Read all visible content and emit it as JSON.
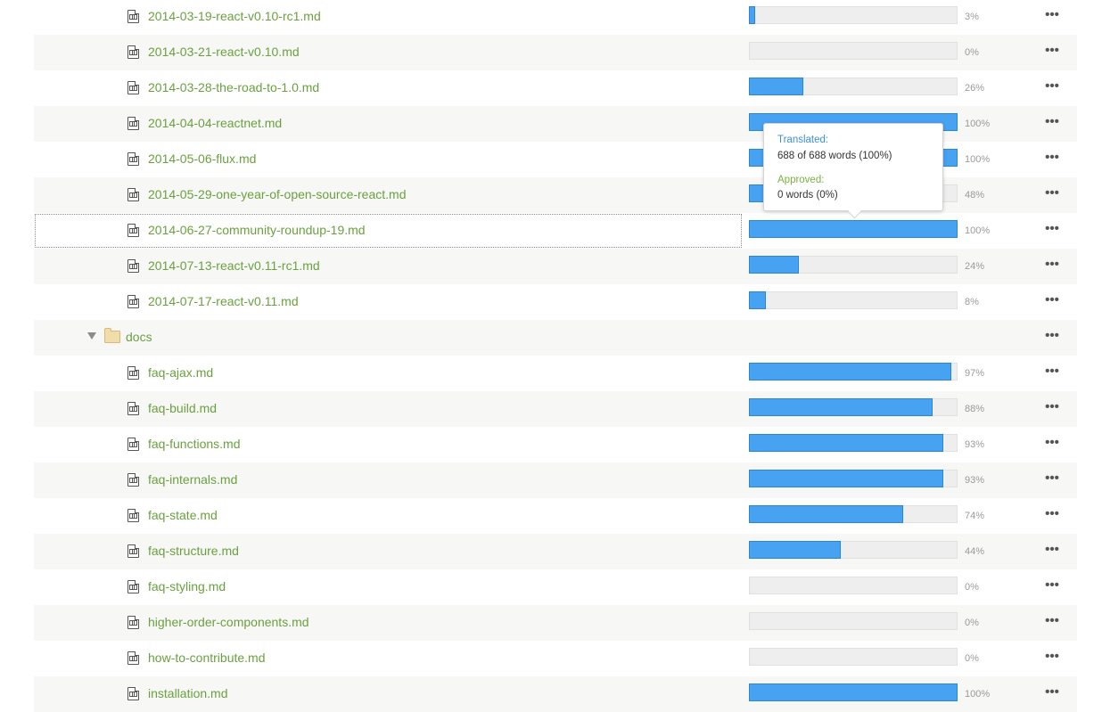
{
  "rows": [
    {
      "kind": "file",
      "name": "2014-03-19-react-v0.10-rc1.md",
      "progress": 3,
      "percent_label": "3%"
    },
    {
      "kind": "file",
      "name": "2014-03-21-react-v0.10.md",
      "progress": 0,
      "percent_label": "0%"
    },
    {
      "kind": "file",
      "name": "2014-03-28-the-road-to-1.0.md",
      "progress": 26,
      "percent_label": "26%"
    },
    {
      "kind": "file",
      "name": "2014-04-04-reactnet.md",
      "progress": 100,
      "percent_label": "100%"
    },
    {
      "kind": "file",
      "name": "2014-05-06-flux.md",
      "progress": 100,
      "percent_label": "100%"
    },
    {
      "kind": "file",
      "name": "2014-05-29-one-year-of-open-source-react.md",
      "progress": 48,
      "percent_label": "48%"
    },
    {
      "kind": "file",
      "name": "2014-06-27-community-roundup-19.md",
      "progress": 100,
      "percent_label": "100%",
      "focused": true
    },
    {
      "kind": "file",
      "name": "2014-07-13-react-v0.11-rc1.md",
      "progress": 24,
      "percent_label": "24%"
    },
    {
      "kind": "file",
      "name": "2014-07-17-react-v0.11.md",
      "progress": 8,
      "percent_label": "8%"
    },
    {
      "kind": "folder",
      "name": "docs",
      "expanded": true
    },
    {
      "kind": "file",
      "name": "faq-ajax.md",
      "progress": 97,
      "percent_label": "97%"
    },
    {
      "kind": "file",
      "name": "faq-build.md",
      "progress": 88,
      "percent_label": "88%"
    },
    {
      "kind": "file",
      "name": "faq-functions.md",
      "progress": 93,
      "percent_label": "93%"
    },
    {
      "kind": "file",
      "name": "faq-internals.md",
      "progress": 93,
      "percent_label": "93%"
    },
    {
      "kind": "file",
      "name": "faq-state.md",
      "progress": 74,
      "percent_label": "74%"
    },
    {
      "kind": "file",
      "name": "faq-structure.md",
      "progress": 44,
      "percent_label": "44%"
    },
    {
      "kind": "file",
      "name": "faq-styling.md",
      "progress": 0,
      "percent_label": "0%"
    },
    {
      "kind": "file",
      "name": "higher-order-components.md",
      "progress": 0,
      "percent_label": "0%"
    },
    {
      "kind": "file",
      "name": "how-to-contribute.md",
      "progress": 0,
      "percent_label": "0%"
    },
    {
      "kind": "file",
      "name": "installation.md",
      "progress": 100,
      "percent_label": "100%"
    }
  ],
  "tooltip": {
    "translated_label": "Translated:",
    "translated_value": "688 of 688 words (100%)",
    "approved_label": "Approved:",
    "approved_value": "0 words (0%)"
  },
  "icons": {
    "file": "markdown-file-icon",
    "folder": "folder-icon",
    "caret": "caret-down-icon",
    "menu": "more-options-icon"
  },
  "colors": {
    "file_link": "#6aa13f",
    "progress_fill": "#47a2f2",
    "tooltip_translated": "#3d8fd8",
    "tooltip_approved": "#7bb13f"
  }
}
